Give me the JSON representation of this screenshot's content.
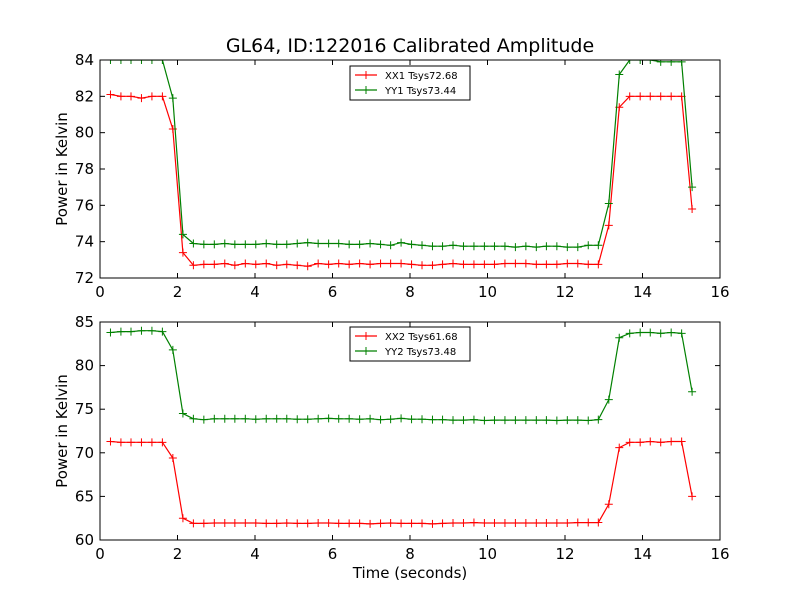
{
  "title": "GL64, ID:122016 Calibrated Amplitude",
  "chart_data": [
    {
      "type": "line",
      "title": "GL64, ID:122016 Calibrated Amplitude",
      "xlabel": "",
      "ylabel": "Power in Kelvin",
      "xlim": [
        0,
        16
      ],
      "ylim": [
        72,
        84
      ],
      "xticks": [
        0,
        2,
        4,
        6,
        8,
        10,
        12,
        14,
        16
      ],
      "yticks": [
        72,
        74,
        76,
        78,
        80,
        82,
        84
      ],
      "grid": false,
      "legend": "top-center",
      "x": [
        0.27,
        0.54,
        0.8,
        1.07,
        1.34,
        1.61,
        1.88,
        2.14,
        2.41,
        2.68,
        2.95,
        3.22,
        3.48,
        3.75,
        4.02,
        4.29,
        4.56,
        4.82,
        5.09,
        5.36,
        5.63,
        5.9,
        6.16,
        6.43,
        6.7,
        6.97,
        7.24,
        7.5,
        7.77,
        8.04,
        8.31,
        8.58,
        8.84,
        9.11,
        9.38,
        9.65,
        9.92,
        10.18,
        10.45,
        10.72,
        10.99,
        11.26,
        11.52,
        11.79,
        12.06,
        12.33,
        12.6,
        12.86,
        13.13,
        13.4,
        13.67,
        13.94,
        14.2,
        14.47,
        14.74,
        15.01,
        15.28
      ],
      "series": [
        {
          "name": "XX1 Tsys72.68",
          "color": "#ff0000",
          "values": [
            82.1,
            82.0,
            82.0,
            81.9,
            82.0,
            82.0,
            80.2,
            73.4,
            72.7,
            72.75,
            72.75,
            72.8,
            72.7,
            72.8,
            72.75,
            72.8,
            72.7,
            72.75,
            72.7,
            72.65,
            72.8,
            72.75,
            72.8,
            72.75,
            72.8,
            72.75,
            72.8,
            72.8,
            72.8,
            72.75,
            72.7,
            72.7,
            72.75,
            72.8,
            72.75,
            72.75,
            72.75,
            72.75,
            72.8,
            72.8,
            72.8,
            72.75,
            72.75,
            72.75,
            72.8,
            72.8,
            72.75,
            72.75,
            74.9,
            81.4,
            82.0,
            82.0,
            82.0,
            82.0,
            82.0,
            82.0,
            75.8
          ]
        },
        {
          "name": "YY1 Tsys73.44",
          "color": "#008000",
          "values": [
            84.0,
            84.0,
            84.0,
            84.0,
            84.0,
            84.0,
            81.9,
            74.4,
            73.9,
            73.85,
            73.85,
            73.9,
            73.85,
            73.85,
            73.85,
            73.9,
            73.85,
            73.85,
            73.9,
            73.95,
            73.9,
            73.9,
            73.9,
            73.85,
            73.85,
            73.9,
            73.85,
            73.8,
            73.95,
            73.85,
            73.8,
            73.75,
            73.75,
            73.8,
            73.75,
            73.75,
            73.75,
            73.75,
            73.75,
            73.7,
            73.75,
            73.7,
            73.75,
            73.75,
            73.7,
            73.7,
            73.8,
            73.8,
            76.1,
            83.2,
            84.0,
            84.0,
            84.0,
            83.9,
            83.9,
            83.9,
            77.0
          ]
        }
      ]
    },
    {
      "type": "line",
      "title": "",
      "xlabel": "Time (seconds)",
      "ylabel": "Power in Kelvin",
      "xlim": [
        0,
        16
      ],
      "ylim": [
        60,
        85
      ],
      "xticks": [
        0,
        2,
        4,
        6,
        8,
        10,
        12,
        14,
        16
      ],
      "yticks": [
        60,
        65,
        70,
        75,
        80,
        85
      ],
      "grid": false,
      "legend": "top-center",
      "x": [
        0.27,
        0.54,
        0.8,
        1.07,
        1.34,
        1.61,
        1.88,
        2.14,
        2.41,
        2.68,
        2.95,
        3.22,
        3.48,
        3.75,
        4.02,
        4.29,
        4.56,
        4.82,
        5.09,
        5.36,
        5.63,
        5.9,
        6.16,
        6.43,
        6.7,
        6.97,
        7.24,
        7.5,
        7.77,
        8.04,
        8.31,
        8.58,
        8.84,
        9.11,
        9.38,
        9.65,
        9.92,
        10.18,
        10.45,
        10.72,
        10.99,
        11.26,
        11.52,
        11.79,
        12.06,
        12.33,
        12.6,
        12.86,
        13.13,
        13.4,
        13.67,
        13.94,
        14.2,
        14.47,
        14.74,
        15.01,
        15.28
      ],
      "series": [
        {
          "name": "XX2 Tsys61.68",
          "color": "#ff0000",
          "values": [
            71.3,
            71.2,
            71.2,
            71.2,
            71.2,
            71.2,
            69.4,
            62.5,
            61.9,
            61.9,
            61.95,
            61.95,
            61.95,
            61.95,
            61.95,
            61.9,
            61.9,
            61.95,
            61.9,
            61.9,
            61.95,
            61.95,
            61.9,
            61.9,
            61.9,
            61.85,
            61.9,
            61.95,
            61.9,
            61.9,
            61.9,
            61.85,
            61.9,
            61.95,
            61.95,
            62.0,
            61.95,
            61.95,
            61.95,
            61.95,
            61.95,
            61.95,
            61.95,
            61.95,
            61.95,
            62.0,
            62.0,
            62.0,
            64.1,
            70.6,
            71.2,
            71.2,
            71.3,
            71.2,
            71.3,
            71.3,
            65.0
          ]
        },
        {
          "name": "YY2 Tsys73.48",
          "color": "#008000",
          "values": [
            83.8,
            83.9,
            83.9,
            84.0,
            84.0,
            83.9,
            81.8,
            74.5,
            73.9,
            73.8,
            73.9,
            73.9,
            73.9,
            73.9,
            73.85,
            73.9,
            73.9,
            73.9,
            73.85,
            73.85,
            73.9,
            73.95,
            73.9,
            73.9,
            73.85,
            73.9,
            73.8,
            73.85,
            73.95,
            73.85,
            73.85,
            73.8,
            73.8,
            73.75,
            73.75,
            73.8,
            73.7,
            73.75,
            73.75,
            73.75,
            73.75,
            73.75,
            73.75,
            73.7,
            73.75,
            73.75,
            73.7,
            73.8,
            76.1,
            83.2,
            83.7,
            83.8,
            83.8,
            83.7,
            83.8,
            83.7,
            77.0
          ]
        }
      ]
    }
  ]
}
